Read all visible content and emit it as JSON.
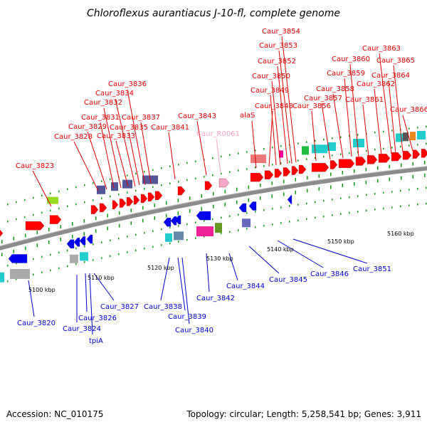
{
  "title": "Chloroflexus aurantiacus J-10-fl, complete genome",
  "footer": {
    "accession": "Accession: NC_010175",
    "topology": "Topology: circular; Length: 5,258,541 bp; Genes: 3,911"
  },
  "colors": {
    "forward_label": "#e00000",
    "reverse_label": "#0000cc",
    "rna_label": "#f4a6c8",
    "backbone": "#8c8c8c",
    "forward_gene": "#ff0000",
    "reverse_gene": "#0000ee",
    "tick": "#119911"
  },
  "scale_labels": [
    "5100 kbp",
    "5110 kbp",
    "5120 kbp",
    "5130 kbp",
    "5140 kbp",
    "5150 kbp",
    "5160 kbp"
  ],
  "gene_labels": {
    "forward": [
      "Caur_3823",
      "Caur_3828",
      "Caur_3829",
      "Caur_3831",
      "Caur_3832",
      "Caur_3833",
      "Caur_3834",
      "Caur_3835",
      "Caur_3836",
      "Caur_3837",
      "Caur_3841",
      "Caur_3843",
      "alaS",
      "Caur_3848",
      "Caur_3849",
      "Caur_3850",
      "Caur_3852",
      "Caur_3853",
      "Caur_3854",
      "Caur_3856",
      "Caur_3857",
      "Caur_3858",
      "Caur_3859",
      "Caur_3860",
      "Caur_3861",
      "Caur_3862",
      "Caur_3863",
      "Caur_3864",
      "Caur_3865",
      "Caur_3866"
    ],
    "reverse": [
      "Caur_3820",
      "Caur_3824",
      "Caur_3826",
      "tpiA",
      "Caur_3827",
      "Caur_3838",
      "Caur_3839",
      "Caur_3840",
      "Caur_3842",
      "Caur_3844",
      "Caur_3845",
      "Caur_3846",
      "Caur_3851"
    ],
    "rna": [
      "Caur_R0061"
    ]
  }
}
